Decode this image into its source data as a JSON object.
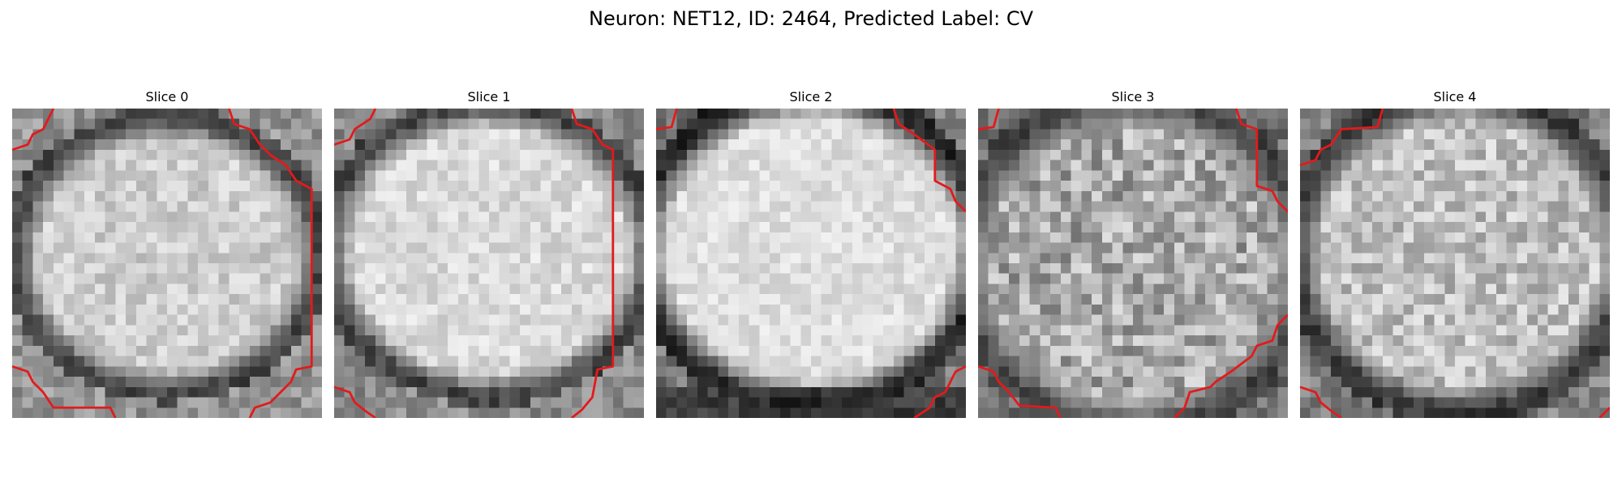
{
  "figure": {
    "title": "Neuron: NET12, ID: 2464, Predicted Label: CV"
  },
  "panels": [
    {
      "title": "Slice 0"
    },
    {
      "title": "Slice 1"
    },
    {
      "title": "Slice 2"
    },
    {
      "title": "Slice 3"
    },
    {
      "title": "Slice 4"
    }
  ],
  "colors": {
    "contour": "#e31a1c",
    "background": "#ffffff"
  }
}
